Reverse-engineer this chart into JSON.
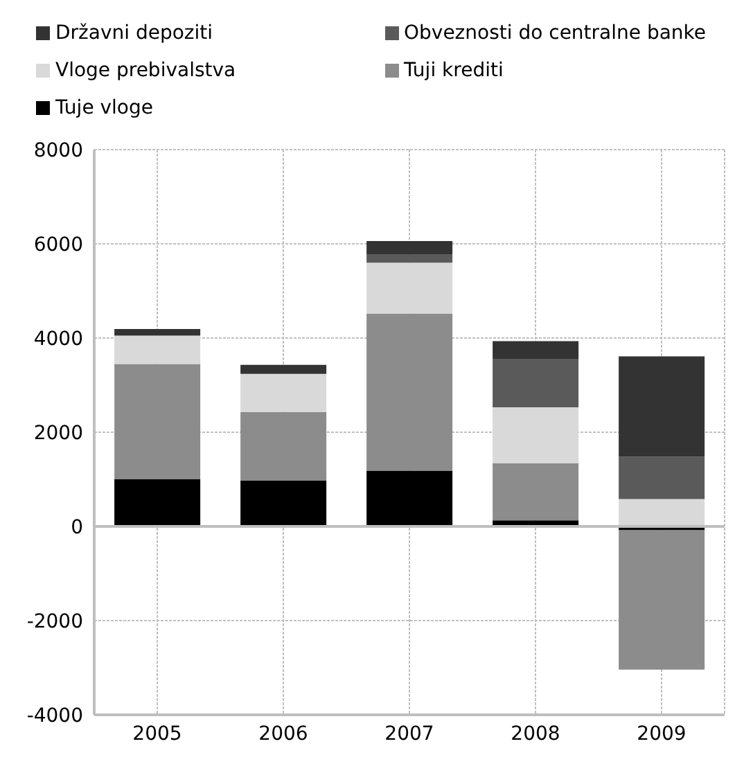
{
  "chart_data": {
    "type": "bar",
    "stacked": true,
    "categories": [
      "2005",
      "2006",
      "2007",
      "2008",
      "2009"
    ],
    "series": [
      {
        "name": "Tuje vloge",
        "color": "#000000",
        "values": [
          1000,
          970,
          1185,
          130,
          -80
        ]
      },
      {
        "name": "Tuji krediti",
        "color": "#8c8c8c",
        "values": [
          2450,
          1460,
          3335,
          1210,
          -2960
        ]
      },
      {
        "name": "Vloge prebivalstva",
        "color": "#d9d9d9",
        "values": [
          600,
          810,
          1080,
          1190,
          580
        ]
      },
      {
        "name": "Obveznosti do centralne banke",
        "color": "#5a5a5a",
        "values": [
          null,
          null,
          170,
          1030,
          900
        ]
      },
      {
        "name": "Državni depoziti",
        "color": "#333333",
        "values": [
          140,
          190,
          290,
          375,
          2130
        ]
      }
    ],
    "ylim": [
      -4000,
      8000
    ],
    "yticks": [
      -4000,
      -2000,
      0,
      2000,
      4000,
      6000,
      8000
    ],
    "grid": true,
    "legend": "top"
  }
}
